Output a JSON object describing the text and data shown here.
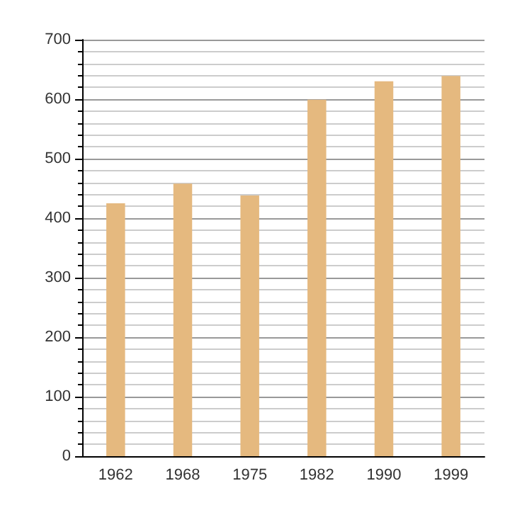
{
  "chart_data": {
    "type": "bar",
    "categories": [
      "1962",
      "1968",
      "1975",
      "1982",
      "1990",
      "1999"
    ],
    "values": [
      425,
      458,
      438,
      599,
      630,
      639
    ],
    "color": "#e5b97f",
    "ylim": [
      0,
      700
    ],
    "yticks": [
      0,
      100,
      200,
      300,
      400,
      500,
      600,
      700
    ],
    "grid": "y"
  }
}
